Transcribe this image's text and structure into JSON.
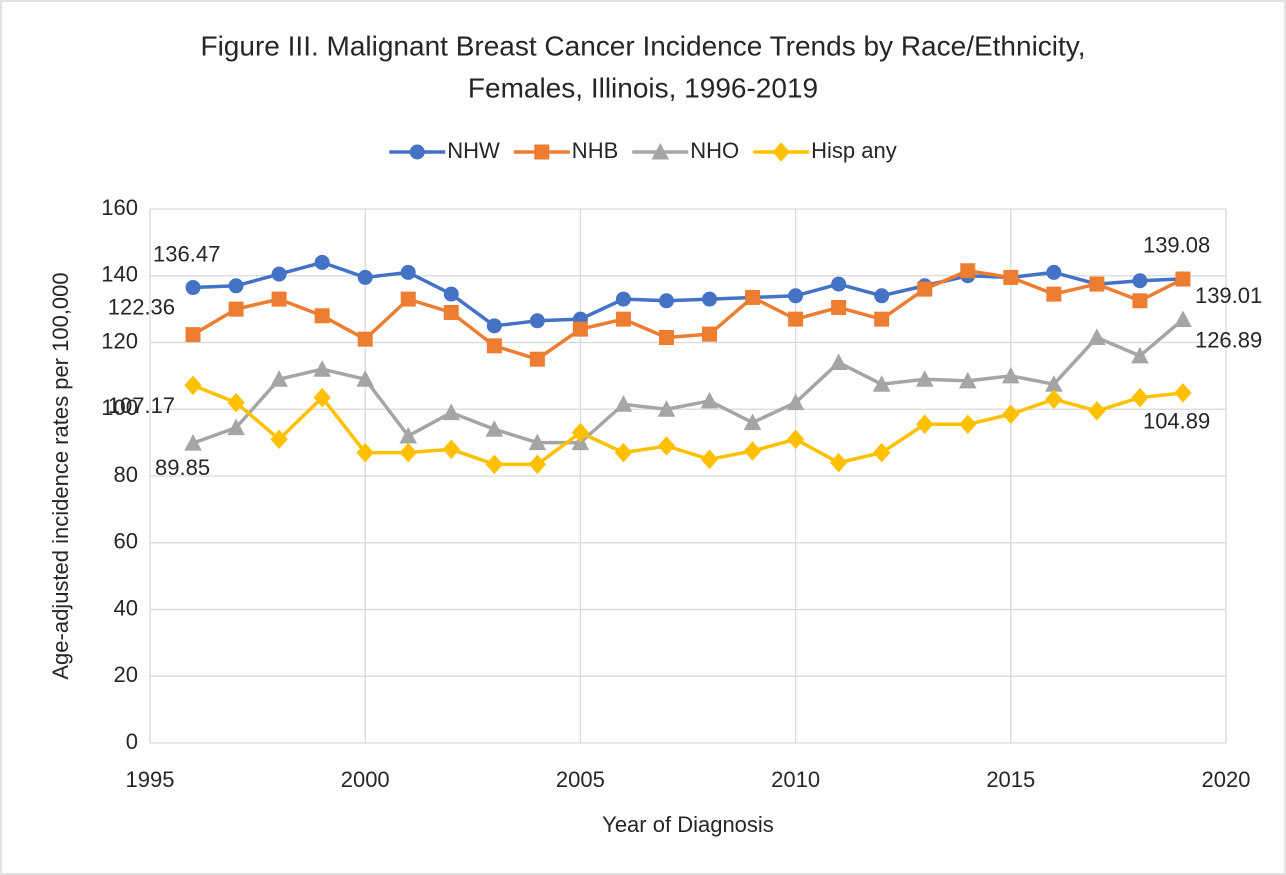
{
  "chart_data": {
    "type": "line",
    "title": [
      "Figure III. Malignant Breast Cancer Incidence Trends by Race/Ethnicity,",
      "Females, Illinois, 1996-2019"
    ],
    "x_label": "Year of Diagnosis",
    "y_label": "Age-adjusted incidence rates per 100,000",
    "x": [
      1996,
      1997,
      1998,
      1999,
      2000,
      2001,
      2002,
      2003,
      2004,
      2005,
      2006,
      2007,
      2008,
      2009,
      2010,
      2011,
      2012,
      2013,
      2014,
      2015,
      2016,
      2017,
      2018,
      2019
    ],
    "series": [
      {
        "name": "NHW",
        "color": "#4472c4",
        "marker": "circle",
        "values": [
          136.47,
          137,
          140.5,
          144,
          139.5,
          141,
          134.5,
          125,
          126.5,
          127,
          133,
          132.5,
          133,
          133.5,
          134,
          137.5,
          134,
          137,
          140,
          139.5,
          141,
          137.5,
          138.5,
          139.08
        ]
      },
      {
        "name": "NHB",
        "color": "#ed7d31",
        "marker": "square",
        "values": [
          122.36,
          130,
          133,
          128,
          121,
          133,
          129,
          119,
          115,
          124,
          127,
          121.5,
          122.5,
          133.5,
          127,
          130.5,
          127,
          136,
          141.5,
          139.5,
          134.5,
          137.5,
          132.5,
          139.01
        ]
      },
      {
        "name": "NHO",
        "color": "#a5a5a5",
        "marker": "triangle",
        "values": [
          89.85,
          94.5,
          109,
          112,
          109,
          92,
          99,
          94,
          90,
          90,
          101.5,
          100,
          102.5,
          96,
          102,
          114,
          107.5,
          109,
          108.5,
          110,
          107.5,
          121.5,
          116,
          126.89
        ]
      },
      {
        "name": "Hisp any",
        "color": "#ffc000",
        "marker": "diamond",
        "values": [
          107.17,
          102,
          91,
          103.5,
          87,
          87,
          88,
          83.5,
          83.5,
          93,
          87,
          89,
          85,
          87.5,
          91,
          84,
          87,
          95.5,
          95.5,
          98.5,
          103,
          99.5,
          103.5,
          104.89
        ]
      }
    ],
    "data_labels": "ends",
    "xlim": [
      1995,
      2020
    ],
    "xticks": [
      1995,
      2000,
      2005,
      2010,
      2015,
      2020
    ],
    "ylim": [
      0,
      160
    ],
    "yticks": [
      0,
      20,
      40,
      60,
      80,
      100,
      120,
      140,
      160
    ],
    "grid": true,
    "legend": "top"
  }
}
